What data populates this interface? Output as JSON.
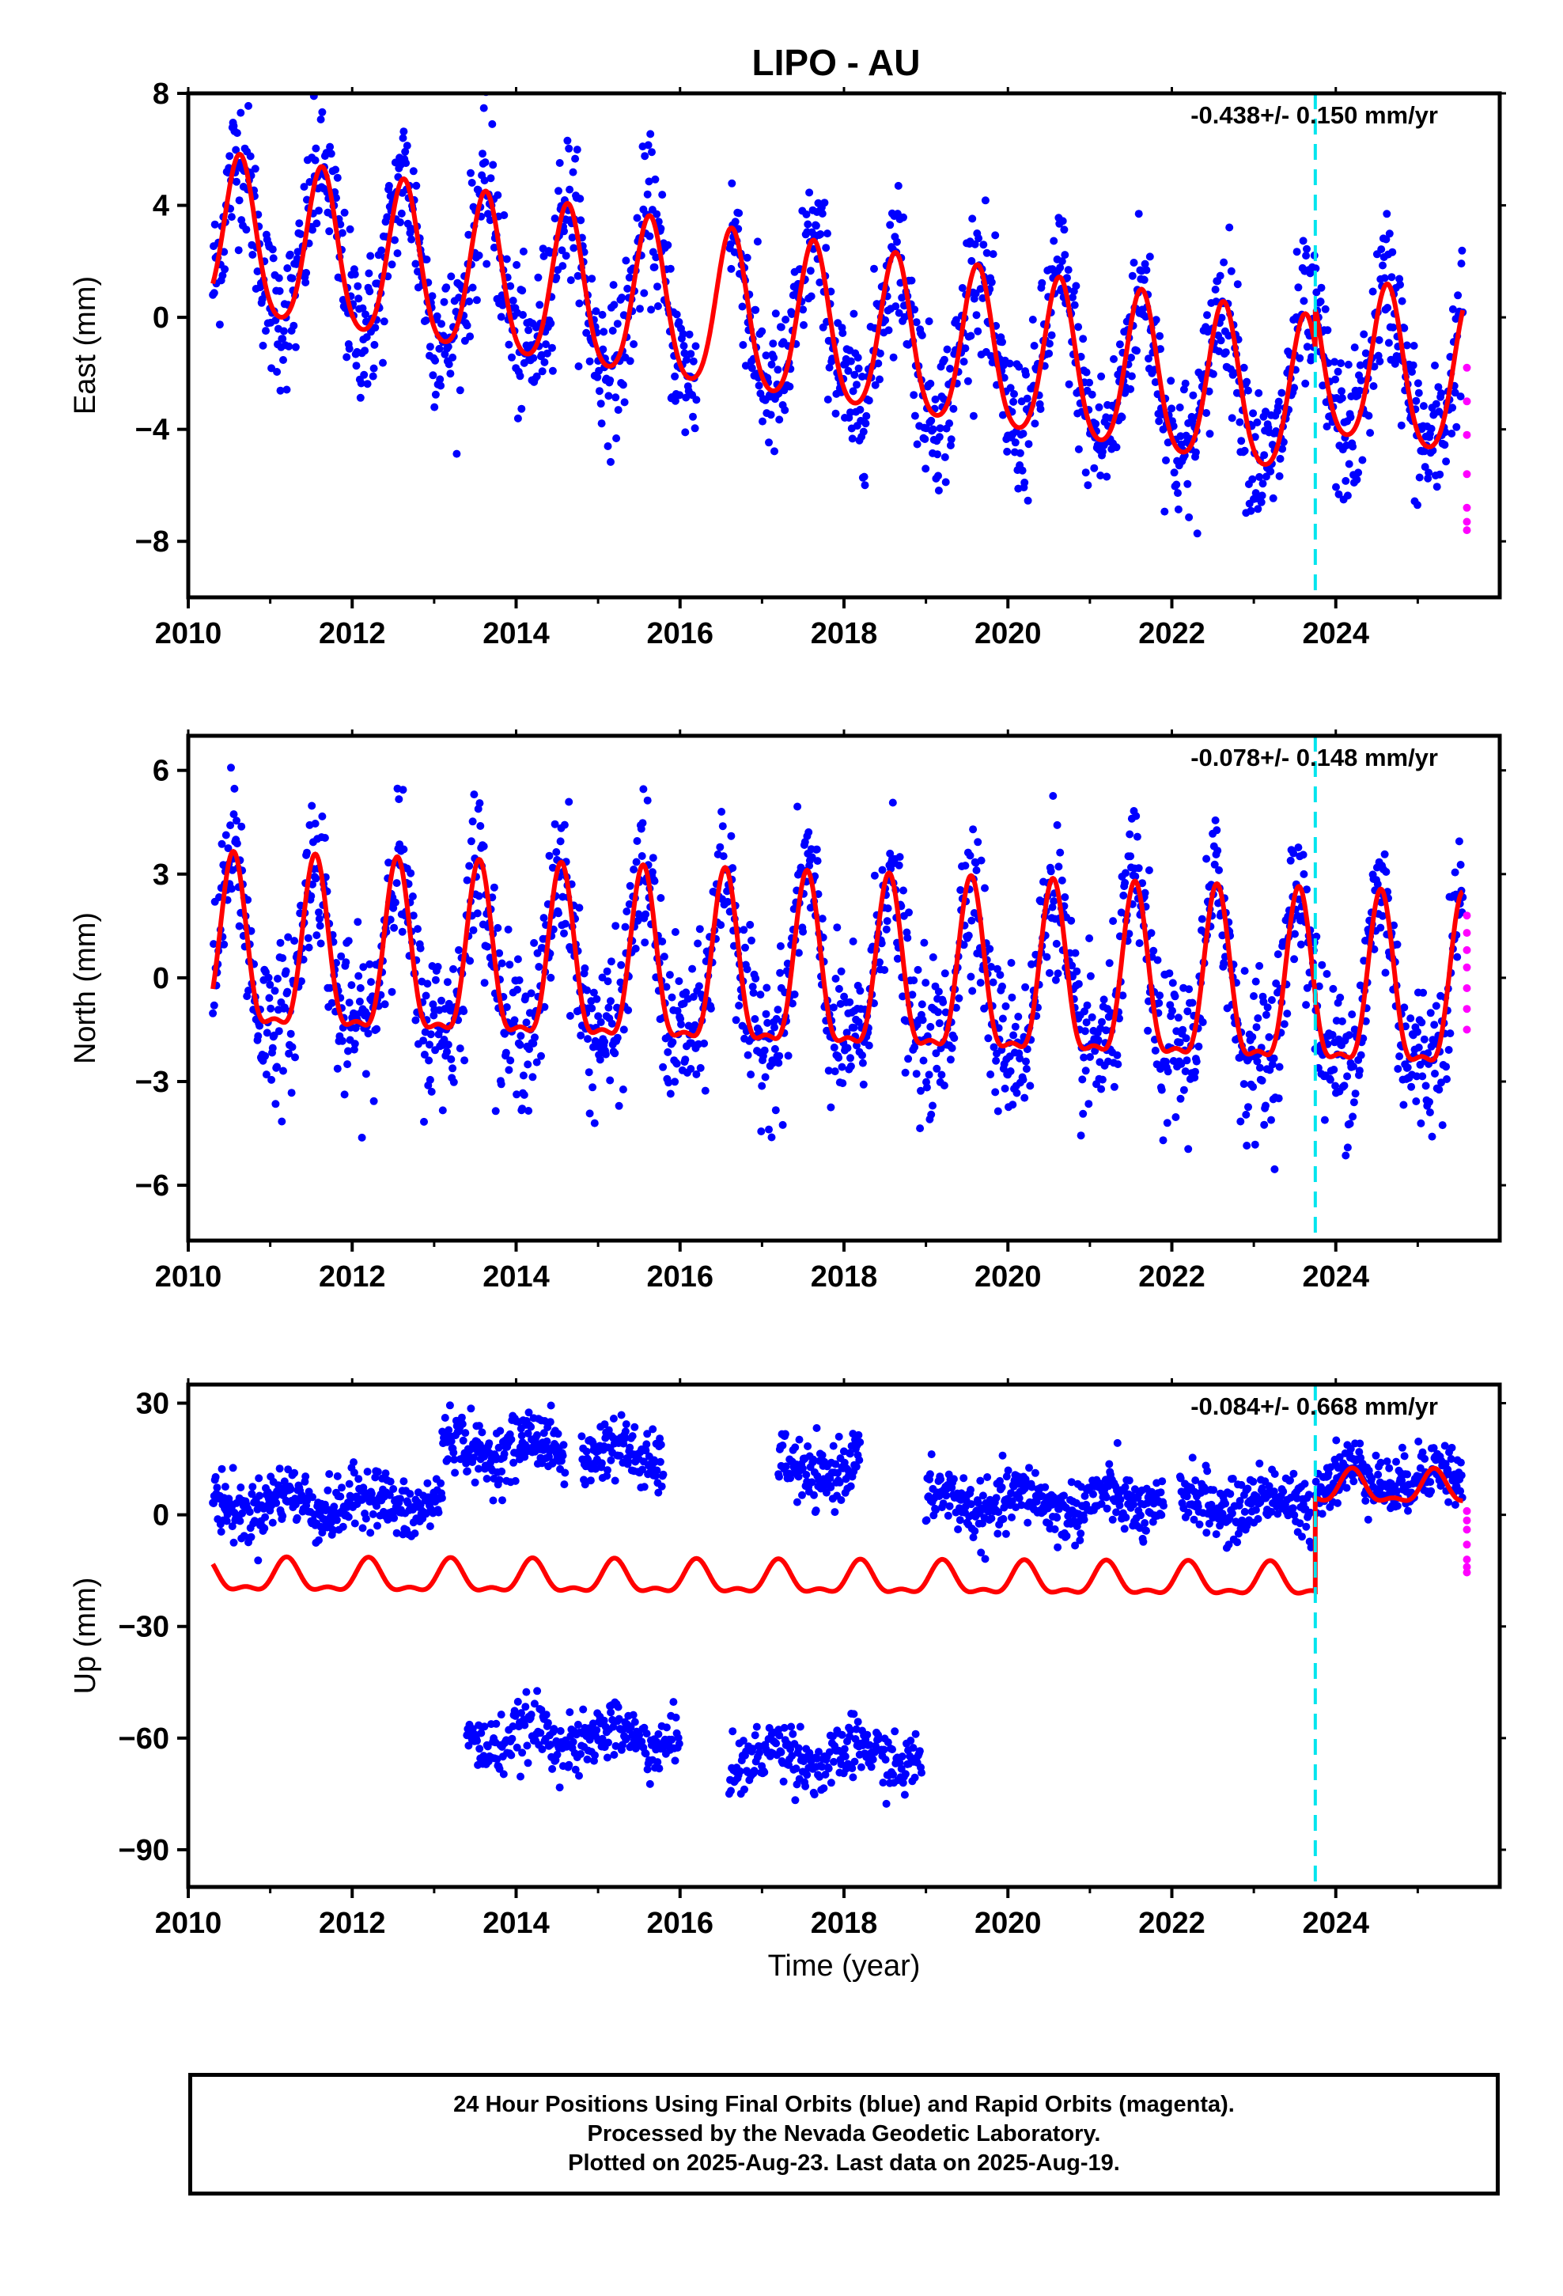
{
  "title": "LIPO - AU",
  "colors": {
    "final_orbits": "#0000ff",
    "rapid_orbits": "#ff00ff",
    "model": "#ff0000",
    "equipment_change": "#00e5ee",
    "frame": "#000000"
  },
  "footer": {
    "line1": "24 Hour Positions Using Final Orbits (blue) and Rapid Orbits (magenta).",
    "line2": "Processed by the Nevada Geodetic Laboratory.",
    "line3": "Plotted on 2025-Aug-23. Last data on 2025-Aug-19."
  },
  "chart_data": [
    {
      "type": "scatter",
      "component": "east",
      "ylabel": "East (mm)",
      "xlabel": "",
      "rate_label": "-0.438+/- 0.150 mm/yr",
      "xlim": [
        2010,
        2026.0
      ],
      "ylim": [
        -10,
        8
      ],
      "xticks": [
        2010,
        2012,
        2014,
        2016,
        2018,
        2020,
        2022,
        2024
      ],
      "xtick_labels": [
        "2010",
        "2012",
        "2014",
        "2016",
        "2018",
        "2020",
        "2022",
        "2024"
      ],
      "yticks": [
        -8,
        -4,
        0,
        4,
        8
      ],
      "ytick_labels": [
        "−8",
        "−4",
        "0",
        "4",
        "8"
      ],
      "data_start": 2010.3,
      "data_end": 2025.55,
      "rapid_start": 2025.6,
      "gaps": [
        [
          2016.2,
          2016.6
        ]
      ],
      "segments": [
        {
          "x": [
            2010.3,
            2016.2
          ],
          "offset": 0
        },
        {
          "x": [
            2016.6,
            2025.55
          ],
          "offset": 0
        }
      ],
      "model": {
        "intercept": 2.9,
        "rate": -0.438,
        "annual_amp": 2.8,
        "annual_phase": 2010.63,
        "semiannual_amp": 0.4,
        "offset_epoch": 2023.75,
        "offset": 1.5,
        "noise": 1.3
      },
      "rapid_y": [
        -1.8,
        -3.0,
        -4.2,
        -5.6,
        -6.8,
        -7.3,
        -7.6
      ],
      "equipment_change": 2023.75
    },
    {
      "type": "scatter",
      "component": "north",
      "ylabel": "North (mm)",
      "xlabel": "",
      "rate_label": "-0.078+/- 0.148 mm/yr",
      "xlim": [
        2010,
        2026.0
      ],
      "ylim": [
        -7.6,
        7.0
      ],
      "xticks": [
        2010,
        2012,
        2014,
        2016,
        2018,
        2020,
        2022,
        2024
      ],
      "xtick_labels": [
        "2010",
        "2012",
        "2014",
        "2016",
        "2018",
        "2020",
        "2022",
        "2024"
      ],
      "yticks": [
        -6,
        -3,
        0,
        3,
        6
      ],
      "ytick_labels": [
        "−6",
        "−3",
        "0",
        "3",
        "6"
      ],
      "data_start": 2010.3,
      "data_end": 2025.55,
      "rapid_start": 2025.6,
      "gaps": [],
      "segments": [
        {
          "x": [
            2010.3,
            2025.55
          ],
          "offset": 0
        }
      ],
      "model": {
        "intercept": 0.5,
        "rate": -0.078,
        "annual_amp": 2.4,
        "annual_phase": 2010.55,
        "semiannual_amp": 0.8,
        "offset_epoch": 2023.75,
        "offset": 0,
        "noise": 1.1
      },
      "rapid_y": [
        1.8,
        1.3,
        0.8,
        0.3,
        -0.3,
        -0.9,
        -1.5
      ],
      "equipment_change": 2023.75
    },
    {
      "type": "scatter",
      "component": "up",
      "ylabel": "Up (mm)",
      "xlabel": "Time (year)",
      "rate_label": "-0.084+/- 0.668 mm/yr",
      "xlim": [
        2010,
        2026.0
      ],
      "ylim": [
        -100,
        35
      ],
      "xticks": [
        2010,
        2012,
        2014,
        2016,
        2018,
        2020,
        2022,
        2024
      ],
      "xtick_labels": [
        "2010",
        "2012",
        "2014",
        "2016",
        "2018",
        "2020",
        "2022",
        "2024"
      ],
      "yticks": [
        -90,
        -60,
        -30,
        0,
        30
      ],
      "ytick_labels": [
        "−90",
        "−60",
        "−30",
        "0",
        "30"
      ],
      "data_start": 2010.3,
      "data_end": 2025.55,
      "rapid_start": 2025.6,
      "segments": [
        {
          "x": [
            2010.3,
            2013.1
          ],
          "level": 3
        },
        {
          "x": [
            2013.1,
            2014.6
          ],
          "level": 18
        },
        {
          "x": [
            2014.8,
            2015.8
          ],
          "level": 16
        },
        {
          "x": [
            2017.2,
            2018.2
          ],
          "level": 12
        },
        {
          "x": [
            2019.0,
            2021.9
          ],
          "level": 3
        },
        {
          "x": [
            2022.1,
            2023.7
          ],
          "level": 3
        },
        {
          "x": [
            2023.75,
            2025.55
          ],
          "level": 10
        },
        {
          "x": [
            2013.4,
            2016.0
          ],
          "level": -60
        },
        {
          "x": [
            2016.6,
            2018.95
          ],
          "level": -65
        }
      ],
      "model": {
        "intercept": -17,
        "rate": -0.084,
        "annual_amp": 4,
        "annual_phase": 2010.2,
        "semiannual_amp": 1.8,
        "offset_epoch": 2023.75,
        "offset": 25,
        "noise": 4
      },
      "rapid_y": [
        1.0,
        -1.5,
        -4.0,
        -8.0,
        -12.0,
        -14.0,
        -15.5
      ],
      "equipment_change": 2023.75
    }
  ]
}
